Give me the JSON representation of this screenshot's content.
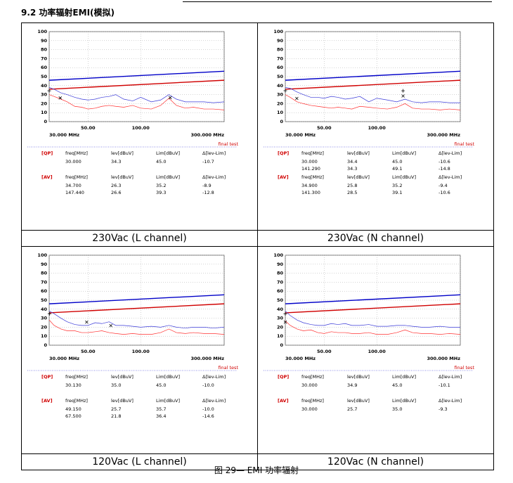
{
  "heading": "9.2 功率辐射EMI(模拟)",
  "figure_caption": "图 29— EMI 功率辐射",
  "panels": [
    {
      "caption": "230Vac (L channel)",
      "plot": {
        "ylim": [
          0,
          100
        ],
        "yticks": [
          0,
          10,
          20,
          30,
          40,
          50,
          60,
          70,
          80,
          90,
          100
        ],
        "xlim": [
          30,
          300
        ],
        "log_x": true,
        "xticks": [
          {
            "value": 30,
            "label": "30.000 MHz"
          },
          {
            "value": 50,
            "label": "50.00"
          },
          {
            "value": 100,
            "label": "100.00"
          },
          {
            "value": 300,
            "label": "300.000 MHz"
          }
        ],
        "note": "final test",
        "limits": [
          {
            "color": "#0000c8",
            "values": [
              46,
              56
            ]
          },
          {
            "color": "#d00000",
            "values": [
              36,
              46
            ]
          }
        ],
        "x": [
          30,
          32,
          35,
          38,
          42,
          46,
          50,
          55,
          60,
          66,
          72,
          80,
          90,
          100,
          115,
          130,
          145,
          160,
          180,
          200,
          230,
          260,
          300
        ],
        "series": [
          {
            "color": "#3a3ad8",
            "values": [
              38,
              36,
              32,
              30,
              27,
              25,
              24,
              25,
              27,
              28,
              30,
              25,
              23,
              27,
              22,
              24,
              30,
              25,
              22,
              22,
              22,
              21,
              22
            ]
          },
          {
            "color": "#ff3030",
            "values": [
              30,
              28,
              25,
              22,
              17,
              16,
              14,
              15,
              17,
              18,
              17,
              16,
              18,
              15,
              14,
              18,
              26,
              18,
              15,
              16,
              14,
              14,
              13
            ]
          }
        ]
      },
      "qp": {
        "label": "[QP]",
        "columns": [
          "freq[MHz]",
          "lev[dBuV]",
          "Lim[dBuV]",
          "Δ[lev-Lim]"
        ],
        "rows": [
          [
            "30.000",
            "34.3",
            "45.0",
            "-10.7"
          ]
        ]
      },
      "av": {
        "label": "[AV]",
        "columns": [
          "freq[MHz]",
          "lev[dBuV]",
          "Lim[dBuV]",
          "Δ[lev-Lim]"
        ],
        "rows": [
          [
            "34.700",
            "26.3",
            "35.2",
            "-8.9"
          ],
          [
            "147.440",
            "26.6",
            "39.3",
            "-12.8"
          ]
        ]
      }
    },
    {
      "caption": "230Vac (N channel)",
      "plot": {
        "ylim": [
          0,
          100
        ],
        "yticks": [
          0,
          10,
          20,
          30,
          40,
          50,
          60,
          70,
          80,
          90,
          100
        ],
        "xlim": [
          30,
          300
        ],
        "log_x": true,
        "xticks": [
          {
            "value": 30,
            "label": "30.000 MHz"
          },
          {
            "value": 50,
            "label": "50.00"
          },
          {
            "value": 100,
            "label": "100.00"
          },
          {
            "value": 300,
            "label": "300.000 MHz"
          }
        ],
        "note": "final test",
        "limits": [
          {
            "color": "#0000c8",
            "values": [
              46,
              56
            ]
          },
          {
            "color": "#d00000",
            "values": [
              36,
              46
            ]
          }
        ],
        "x": [
          30,
          32,
          35,
          38,
          42,
          46,
          50,
          55,
          60,
          66,
          72,
          80,
          90,
          100,
          115,
          130,
          145,
          160,
          180,
          200,
          230,
          260,
          300
        ],
        "series": [
          {
            "color": "#3a3ad8",
            "values": [
              38,
              37,
              33,
              30,
              27,
              27,
              26,
              28,
              27,
              25,
              26,
              28,
              22,
              26,
              24,
              22,
              25,
              22,
              21,
              22,
              22,
              21,
              21
            ]
          },
          {
            "color": "#ff3030",
            "values": [
              30,
              27,
              22,
              20,
              18,
              17,
              16,
              15,
              16,
              15,
              14,
              17,
              16,
              15,
              14,
              16,
              20,
              15,
              14,
              14,
              13,
              14,
              13
            ]
          }
        ]
      },
      "qp": {
        "label": "[QP]",
        "columns": [
          "freq[MHz]",
          "lev[dBuV]",
          "Lim[dBuV]",
          "Δ[lev-Lim]"
        ],
        "rows": [
          [
            "30.000",
            "34.4",
            "45.0",
            "-10.6"
          ],
          [
            "141.290",
            "34.3",
            "49.1",
            "-14.8"
          ]
        ]
      },
      "av": {
        "label": "[AV]",
        "columns": [
          "freq[MHz]",
          "lev[dBuV]",
          "Lim[dBuV]",
          "Δ[lev-Lim]"
        ],
        "rows": [
          [
            "34.900",
            "25.8",
            "35.2",
            "-9.4"
          ],
          [
            "141.300",
            "28.5",
            "39.1",
            "-10.6"
          ]
        ]
      }
    },
    {
      "caption": "120Vac (L channel)",
      "plot": {
        "ylim": [
          0,
          100
        ],
        "yticks": [
          0,
          10,
          20,
          30,
          40,
          50,
          60,
          70,
          80,
          90,
          100
        ],
        "xlim": [
          30,
          300
        ],
        "log_x": true,
        "xticks": [
          {
            "value": 30,
            "label": "30.000 MHz"
          },
          {
            "value": 50,
            "label": "50.00"
          },
          {
            "value": 100,
            "label": "100.00"
          },
          {
            "value": 300,
            "label": "300.000 MHz"
          }
        ],
        "note": "final test",
        "limits": [
          {
            "color": "#0000c8",
            "values": [
              46,
              56
            ]
          },
          {
            "color": "#d00000",
            "values": [
              36,
              46
            ]
          }
        ],
        "x": [
          30,
          32,
          35,
          38,
          42,
          46,
          50,
          55,
          60,
          66,
          72,
          80,
          90,
          100,
          115,
          130,
          145,
          160,
          180,
          200,
          230,
          260,
          300
        ],
        "series": [
          {
            "color": "#3a3ad8",
            "values": [
              38,
              35,
              30,
              26,
              23,
              22,
              22,
              25,
              24,
              26,
              22,
              22,
              21,
              20,
              21,
              20,
              22,
              20,
              19,
              20,
              20,
              19,
              20
            ]
          },
          {
            "color": "#ff3030",
            "values": [
              28,
              22,
              18,
              16,
              16,
              14,
              14,
              15,
              16,
              14,
              13,
              12,
              13,
              12,
              12,
              14,
              18,
              14,
              13,
              14,
              13,
              13,
              12
            ]
          }
        ]
      },
      "qp": {
        "label": "[QP]",
        "columns": [
          "freq[MHz]",
          "lev[dBuV]",
          "Lim[dBuV]",
          "Δ[lev-Lim]"
        ],
        "rows": [
          [
            "30.130",
            "35.0",
            "45.0",
            "-10.0"
          ]
        ]
      },
      "av": {
        "label": "[AV]",
        "columns": [
          "freq[MHz]",
          "lev[dBuV]",
          "Lim[dBuV]",
          "Δ[lev-Lim]"
        ],
        "rows": [
          [
            "49.150",
            "25.7",
            "35.7",
            "-10.0"
          ],
          [
            "67.500",
            "21.8",
            "36.4",
            "-14.6"
          ]
        ]
      }
    },
    {
      "caption": "120Vac (N channel)",
      "plot": {
        "ylim": [
          0,
          100
        ],
        "yticks": [
          0,
          10,
          20,
          30,
          40,
          50,
          60,
          70,
          80,
          90,
          100
        ],
        "xlim": [
          30,
          300
        ],
        "log_x": true,
        "xticks": [
          {
            "value": 30,
            "label": "30.000 MHz"
          },
          {
            "value": 50,
            "label": "50.00"
          },
          {
            "value": 100,
            "label": "100.00"
          },
          {
            "value": 300,
            "label": "300.000 MHz"
          }
        ],
        "note": "final test",
        "limits": [
          {
            "color": "#0000c8",
            "values": [
              46,
              56
            ]
          },
          {
            "color": "#d00000",
            "values": [
              36,
              46
            ]
          }
        ],
        "x": [
          30,
          32,
          35,
          38,
          42,
          46,
          50,
          55,
          60,
          66,
          72,
          80,
          90,
          100,
          115,
          130,
          145,
          160,
          180,
          200,
          230,
          260,
          300
        ],
        "series": [
          {
            "color": "#3a3ad8",
            "values": [
              38,
              33,
              28,
              25,
              23,
              22,
              22,
              24,
              23,
              24,
              22,
              22,
              23,
              21,
              21,
              22,
              22,
              21,
              20,
              20,
              21,
              20,
              20
            ]
          },
          {
            "color": "#ff3030",
            "values": [
              27,
              22,
              18,
              16,
              17,
              14,
              13,
              15,
              14,
              14,
              13,
              13,
              14,
              12,
              12,
              14,
              17,
              14,
              13,
              13,
              12,
              13,
              12
            ]
          }
        ]
      },
      "qp": {
        "label": "[QP]",
        "columns": [
          "freq[MHz]",
          "lev[dBuV]",
          "Lim[dBuV]",
          "Δ[lev-Lim]"
        ],
        "rows": [
          [
            "30.000",
            "34.9",
            "45.0",
            "-10.1"
          ]
        ]
      },
      "av": {
        "label": "[AV]",
        "columns": [
          "freq[MHz]",
          "lev[dBuV]",
          "Lim[dBuV]",
          "Δ[lev-Lim]"
        ],
        "rows": [
          [
            "30.000",
            "25.7",
            "35.0",
            "-9.3"
          ]
        ]
      }
    }
  ]
}
